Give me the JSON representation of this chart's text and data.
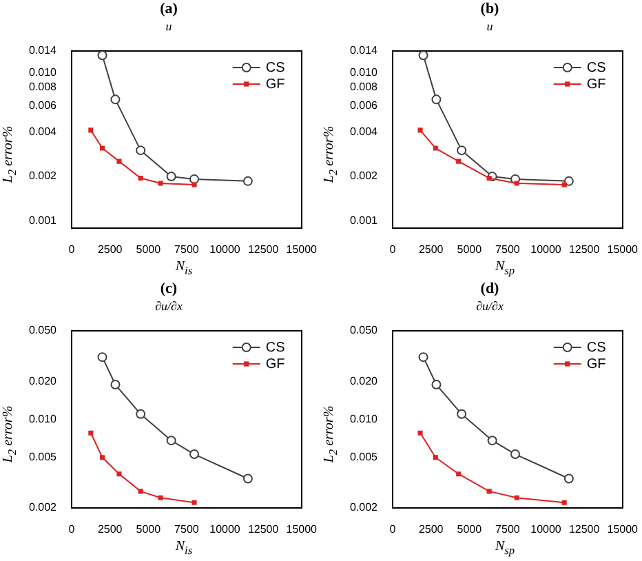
{
  "chart_data": [
    {
      "type": "line",
      "title": "(a)",
      "subtitle": "u",
      "xlabel": "N$_{is}$",
      "ylabel": "L$_{2}$ error%",
      "log": "y",
      "grid": false,
      "legend": "top right",
      "xlim": [
        0,
        15000
      ],
      "xticks": [
        0,
        2500,
        5000,
        7500,
        10000,
        12500,
        15000
      ],
      "ylim": [
        0.0009,
        0.014
      ],
      "yticks": [
        0.001,
        0.002,
        0.004,
        0.006,
        0.008,
        {
          "value": 0.01,
          "label": "0.010"
        },
        0.014
      ],
      "series": [
        {
          "name": "CS",
          "color": "#404040",
          "marker": "circle",
          "x": [
            2000,
            2850,
            4500,
            6500,
            8000,
            11500
          ],
          "values": [
            0.0131,
            0.0066,
            0.003,
            0.002,
            0.00192,
            0.00186
          ]
        },
        {
          "name": "GF",
          "color": "#e02020",
          "marker": "square",
          "x": [
            1250,
            2000,
            3100,
            4500,
            5800,
            8000
          ],
          "values": [
            0.0041,
            0.0031,
            0.00253,
            0.00195,
            0.0018,
            0.00176
          ]
        }
      ]
    },
    {
      "type": "line",
      "title": "(b)",
      "subtitle": "u",
      "xlabel": "N$_{sp}$",
      "ylabel": "L$_{2}$ error%",
      "log": "y",
      "grid": false,
      "legend": "top right",
      "xlim": [
        0,
        15000
      ],
      "xticks": [
        0,
        2500,
        5000,
        7500,
        10000,
        12500,
        15000
      ],
      "ylim": [
        0.0009,
        0.014
      ],
      "yticks": [
        0.001,
        0.002,
        0.004,
        0.006,
        0.008,
        {
          "value": 0.01,
          "label": "0.010"
        },
        0.014
      ],
      "series": [
        {
          "name": "CS",
          "color": "#404040",
          "marker": "circle",
          "x": [
            2000,
            2850,
            4500,
            6500,
            8000,
            11500
          ],
          "values": [
            0.0131,
            0.0066,
            0.003,
            0.002,
            0.00192,
            0.00186
          ]
        },
        {
          "name": "GF",
          "color": "#e02020",
          "marker": "square",
          "x": [
            1800,
            2800,
            4300,
            6300,
            8100,
            11200
          ],
          "values": [
            0.0041,
            0.0031,
            0.00253,
            0.00195,
            0.0018,
            0.00176
          ]
        }
      ]
    },
    {
      "type": "line",
      "title": "(c)",
      "subtitle": "∂u/∂x",
      "xlabel": "N$_{is}$",
      "ylabel": "L$_{2}$ error%",
      "log": "y",
      "grid": false,
      "legend": "top right",
      "xlim": [
        0,
        15000
      ],
      "xticks": [
        0,
        2500,
        5000,
        7500,
        10000,
        12500,
        15000
      ],
      "ylim": [
        0.002,
        0.05
      ],
      "yticks": [
        {
          "value": 0.002,
          "label": "0.002"
        },
        {
          "value": 0.005,
          "label": "0.005"
        },
        {
          "value": 0.01,
          "label": "0.010"
        },
        {
          "value": 0.02,
          "label": "0.020"
        },
        {
          "value": 0.05,
          "label": "0.050"
        }
      ],
      "series": [
        {
          "name": "CS",
          "color": "#404040",
          "marker": "circle",
          "x": [
            2000,
            2850,
            4500,
            6500,
            8000,
            11500
          ],
          "values": [
            0.031,
            0.0188,
            0.011,
            0.0068,
            0.0053,
            0.0034
          ]
        },
        {
          "name": "GF",
          "color": "#e02020",
          "marker": "square",
          "x": [
            1250,
            2000,
            3100,
            4500,
            5800,
            8000
          ],
          "values": [
            0.0078,
            0.005,
            0.0037,
            0.0027,
            0.0024,
            0.0022
          ]
        }
      ]
    },
    {
      "type": "line",
      "title": "(d)",
      "subtitle": "∂u/∂x",
      "xlabel": "N$_{sp}$",
      "ylabel": "L$_{2}$ error%",
      "log": "y",
      "grid": false,
      "legend": "top right",
      "xlim": [
        0,
        15000
      ],
      "xticks": [
        0,
        2500,
        5000,
        7500,
        10000,
        12500,
        15000
      ],
      "ylim": [
        0.002,
        0.05
      ],
      "yticks": [
        {
          "value": 0.002,
          "label": "0.002"
        },
        {
          "value": 0.005,
          "label": "0.005"
        },
        {
          "value": 0.01,
          "label": "0.010"
        },
        {
          "value": 0.02,
          "label": "0.020"
        },
        {
          "value": 0.05,
          "label": "0.050"
        }
      ],
      "series": [
        {
          "name": "CS",
          "color": "#404040",
          "marker": "circle",
          "x": [
            2000,
            2850,
            4500,
            6500,
            8000,
            11500
          ],
          "values": [
            0.031,
            0.0188,
            0.011,
            0.0068,
            0.0053,
            0.0034
          ]
        },
        {
          "name": "GF",
          "color": "#e02020",
          "marker": "square",
          "x": [
            1800,
            2800,
            4300,
            6300,
            8100,
            11200
          ],
          "values": [
            0.0078,
            0.005,
            0.0037,
            0.0027,
            0.0024,
            0.0022
          ]
        }
      ]
    }
  ]
}
